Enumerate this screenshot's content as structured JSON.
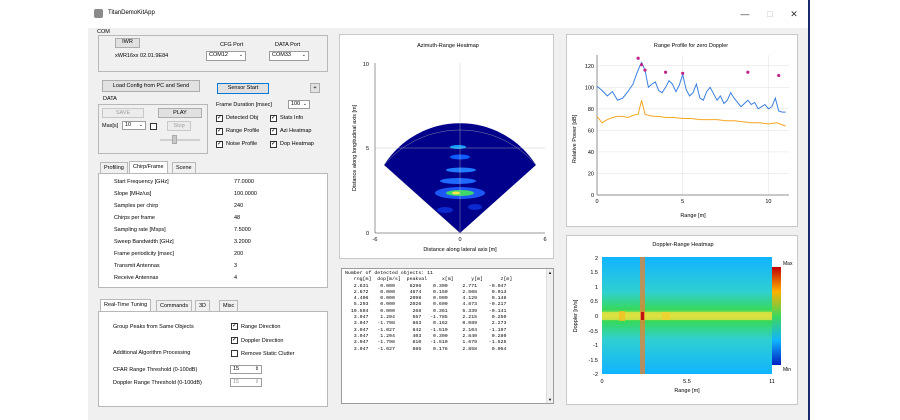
{
  "window": {
    "title": "TitanDemoKitApp",
    "minimize": "—",
    "maximize": "□",
    "close": "✕"
  },
  "com": {
    "group_label": "COM",
    "device_button": "IWR",
    "device_info": "xWR16xx  02.01.9E84",
    "cfg_port_label": "CFG Port",
    "cfg_port_value": "COM12",
    "data_port_label": "DATA Port",
    "data_port_value": "COM33"
  },
  "controls": {
    "load_config_button": "Load Config from PC and Send",
    "sensor_start_button": "Sensor Start",
    "plus_button": "+",
    "data_label": "DATA",
    "save_button": "SAVE",
    "play_button": "PLAY",
    "stop_button": "Stop",
    "max_label": "Max[s]",
    "max_value": "10",
    "frame_duration_label": "Frame Duration [msec]",
    "frame_duration_value": "100",
    "checkboxes": [
      {
        "label": "Detected Obj",
        "checked": true
      },
      {
        "label": "Stats Info",
        "checked": true
      },
      {
        "label": "Range Profile",
        "checked": true
      },
      {
        "label": "Azi Heatmap",
        "checked": true
      },
      {
        "label": "Noise Profile",
        "checked": true
      },
      {
        "label": "Dop Heatmap",
        "checked": true
      }
    ]
  },
  "config_tabs": [
    "Profiling",
    "Chirp/Frame",
    "Scene"
  ],
  "config_rows": [
    {
      "name": "Start Frequency [GHz]",
      "value": "77.0000"
    },
    {
      "name": "Slope [MHz/us]",
      "value": "100.0000"
    },
    {
      "name": "Samples per chirp",
      "value": "240"
    },
    {
      "name": "Chirps per frame",
      "value": "48"
    },
    {
      "name": "Sampling rate [Msps]",
      "value": "7.5000"
    },
    {
      "name": "Sweep Bandwidth [GHz]",
      "value": "3.2000"
    },
    {
      "name": "Frame periodicity [msec]",
      "value": "200"
    },
    {
      "name": "Transmit Antennas",
      "value": "3"
    },
    {
      "name": "Receive Antennas",
      "value": "4"
    }
  ],
  "tuning_tabs": [
    "Real-Time Tuning",
    "Commands",
    "3D",
    "Misc"
  ],
  "tuning": {
    "group_peaks_label": "Group Peaks from Same Objects",
    "range_direction": "Range Direction",
    "doppler_direction": "Doppler Direction",
    "additional_label": "Additional Algorithm Processing",
    "remove_clutter": "Remove Static Clutter",
    "cfar_range_label": "CFAR Range Threshold (0-100dB)",
    "cfar_range_value": "15",
    "cfar_doppler_label": "Doppler Range Threshold (0-100dB)",
    "cfar_doppler_value": "15"
  },
  "detected_objects_text": "Number of detected objects: 11\n   rng[m]  dop[m/s]  peakval     x[m]      y[m]      z[m]\n   2.631    0.000     8296    0.300     2.771    -0.047\n   2.672    0.000     4674    0.150     2.508     0.013\n   4.406    0.000     2098    0.900     4.129     0.148\n   5.293    0.000     2026    0.600     4.873    -0.217\n  10.594    0.000      268    0.361     5.339    -0.141\n   3.047    1.204      557   -1.785     2.215     0.250\n   3.047   -1.798      863    0.162     0.089     2.273\n   3.047   -1.027      842   -1.510     2.104    -1.197\n   3.047    1.204      403    0.300     2.840     0.280\n   3.047   -1.798      810   -1.510     1.679    -1.525\n   3.047   -1.027      885    0.178     2.858     0.064",
  "azimuth_plot": {
    "title": "Azimuth-Range Heatmap",
    "xlabel": "Distance along lateral axis [m]",
    "ylabel": "Distance along longitudinal axis [m]",
    "xticks": [
      "-6",
      "0",
      "6"
    ],
    "yticks": [
      "0",
      "5",
      "10"
    ]
  },
  "chart_data": [
    {
      "type": "line",
      "title": "Range Profile for zero Doppler",
      "xlabel": "Range [m]",
      "ylabel": "Relative Power [dB]",
      "xlim": [
        0,
        11.2
      ],
      "ylim": [
        0,
        130
      ],
      "xticks": [
        0,
        5,
        10
      ],
      "yticks": [
        0,
        20,
        40,
        60,
        80,
        100,
        120
      ],
      "series": [
        {
          "color": "#3a7fe0",
          "x": [
            0,
            0.3,
            0.6,
            0.9,
            1.2,
            1.5,
            1.8,
            2.1,
            2.3,
            2.5,
            2.6,
            2.8,
            3.0,
            3.2,
            3.4,
            3.6,
            3.8,
            4.0,
            4.2,
            4.4,
            4.6,
            4.8,
            5.0,
            5.2,
            5.4,
            5.6,
            5.8,
            6.0,
            6.2,
            6.4,
            6.6,
            6.8,
            7.0,
            7.2,
            7.4,
            7.6,
            7.8,
            8.0,
            8.2,
            8.4,
            8.6,
            8.8,
            9.0,
            9.2,
            9.4,
            9.6,
            9.8,
            10.0,
            10.2,
            10.4,
            10.6,
            10.8,
            11.0
          ],
          "y": [
            101,
            97,
            92,
            96,
            88,
            90,
            96,
            103,
            112,
            120,
            123,
            116,
            100,
            103,
            105,
            97,
            95,
            100,
            106,
            103,
            96,
            102,
            112,
            98,
            92,
            95,
            103,
            90,
            88,
            96,
            100,
            94,
            88,
            92,
            85,
            88,
            95,
            90,
            86,
            82,
            85,
            88,
            84,
            86,
            80,
            82,
            84,
            80,
            82,
            90,
            78,
            77,
            77
          ]
        },
        {
          "color": "#f5a623",
          "x": [
            0,
            0.3,
            0.6,
            0.9,
            1.2,
            1.5,
            1.8,
            2.1,
            2.4,
            2.6,
            2.8,
            3.0,
            3.3,
            3.6,
            4.0,
            4.5,
            5.0,
            5.5,
            6.0,
            6.5,
            7.0,
            7.5,
            8.0,
            8.5,
            9.0,
            9.5,
            10.0,
            10.5,
            11.0
          ],
          "y": [
            73,
            67,
            70,
            72,
            73,
            73,
            72,
            74,
            75,
            88,
            75,
            74,
            73,
            73,
            72,
            72,
            71,
            71,
            70,
            70,
            70,
            69,
            69,
            68,
            67,
            67,
            66,
            67,
            64
          ]
        }
      ],
      "markers": {
        "color": "#c0278a",
        "x": [
          2.4,
          2.6,
          2.8,
          4.0,
          5.0,
          8.8,
          10.6
        ],
        "y": [
          127,
          121,
          116,
          114,
          113,
          114,
          111
        ]
      }
    },
    {
      "type": "heatmap",
      "title": "Doppler-Range Heatmap",
      "xlabel": "Range [m]",
      "ylabel": "Doppler [m/s]",
      "xticks": [
        "0",
        "5.5",
        "11"
      ],
      "yticks": [
        "-2",
        "-1.5",
        "-1",
        "-0.5",
        "0",
        "0.5",
        "1",
        "1.5",
        "2"
      ],
      "colorbar": {
        "max_label": "Max",
        "min_label": "Min"
      }
    }
  ]
}
